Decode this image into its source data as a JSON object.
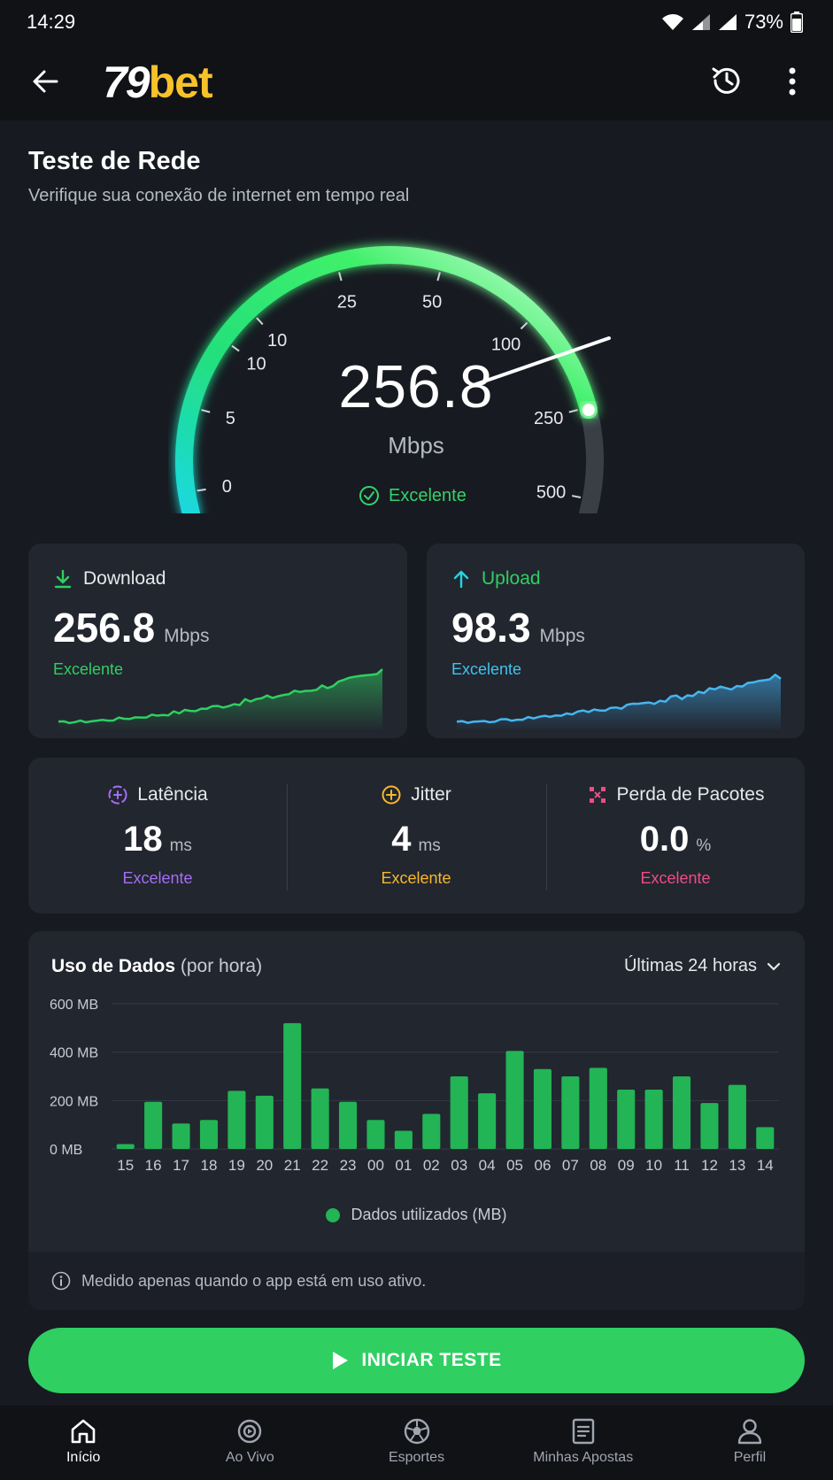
{
  "status_bar": {
    "time": "14:29",
    "battery": "73%"
  },
  "header": {
    "logo_number": "79",
    "logo_text": "bet",
    "back_icon": "arrow-left-icon",
    "history_icon": "history-icon",
    "more_icon": "more-vertical-icon"
  },
  "page": {
    "title": "Teste de Rede",
    "subtitle": "Verifique sua conexão de internet em tempo real"
  },
  "gauge": {
    "value": "256.8",
    "unit": "Mbps",
    "status": "Excelente",
    "scale_labels": [
      "0",
      "5",
      "10",
      "10",
      "25",
      "50",
      "100",
      "250",
      "500"
    ],
    "needle_value": 256.8
  },
  "download": {
    "label": "Download",
    "value": "256.8",
    "unit": "Mbps",
    "status": "Excelente",
    "color": "#2fcf62"
  },
  "upload": {
    "label": "Upload",
    "value": "98.3",
    "unit": "Mbps",
    "status": "Excelente",
    "color": "#3fa9e8"
  },
  "metrics": [
    {
      "label": "Latência",
      "value": "18",
      "unit": "ms",
      "status": "Excelente",
      "color": "#a46df5"
    },
    {
      "label": "Jitter",
      "value": "4",
      "unit": "ms",
      "status": "Excelente",
      "color": "#f5b82e"
    },
    {
      "label": "Perda de Pacotes",
      "value": "0.0",
      "unit": "%",
      "status": "Excelente",
      "color": "#ec4d86"
    }
  ],
  "usage": {
    "title": "Uso de Dados",
    "title_suffix": "(por hora)",
    "range": "Últimas 24 horas",
    "legend": "Dados utilizados (MB)",
    "info": "Medido apenas quando o app está em uso ativo."
  },
  "chart_data": {
    "type": "bar",
    "categories": [
      "15",
      "16",
      "17",
      "18",
      "19",
      "20",
      "21",
      "22",
      "23",
      "00",
      "01",
      "02",
      "03",
      "04",
      "05",
      "06",
      "07",
      "08",
      "09",
      "10",
      "11",
      "12",
      "13",
      "14"
    ],
    "series": [
      {
        "name": "Dados utilizados (MB)",
        "values": [
          20,
          195,
          105,
          120,
          240,
          220,
          520,
          250,
          195,
          120,
          75,
          145,
          300,
          230,
          405,
          330,
          300,
          335,
          245,
          245,
          300,
          190,
          265,
          90
        ]
      }
    ],
    "y_ticks": [
      "600 MB",
      "400 MB",
      "200 MB",
      "0 MB"
    ],
    "ylim": [
      0,
      600
    ],
    "grid": true,
    "legend_position": "bottom"
  },
  "actions": {
    "start_label": "INICIAR TESTE"
  },
  "nav": [
    {
      "label": "Início",
      "icon": "home-icon",
      "active": true
    },
    {
      "label": "Ao Vivo",
      "icon": "live-icon",
      "active": false
    },
    {
      "label": "Esportes",
      "icon": "soccer-ball-icon",
      "active": false
    },
    {
      "label": "Minhas Apostas",
      "icon": "bets-list-icon",
      "active": false
    },
    {
      "label": "Perfil",
      "icon": "user-icon",
      "active": false
    }
  ]
}
